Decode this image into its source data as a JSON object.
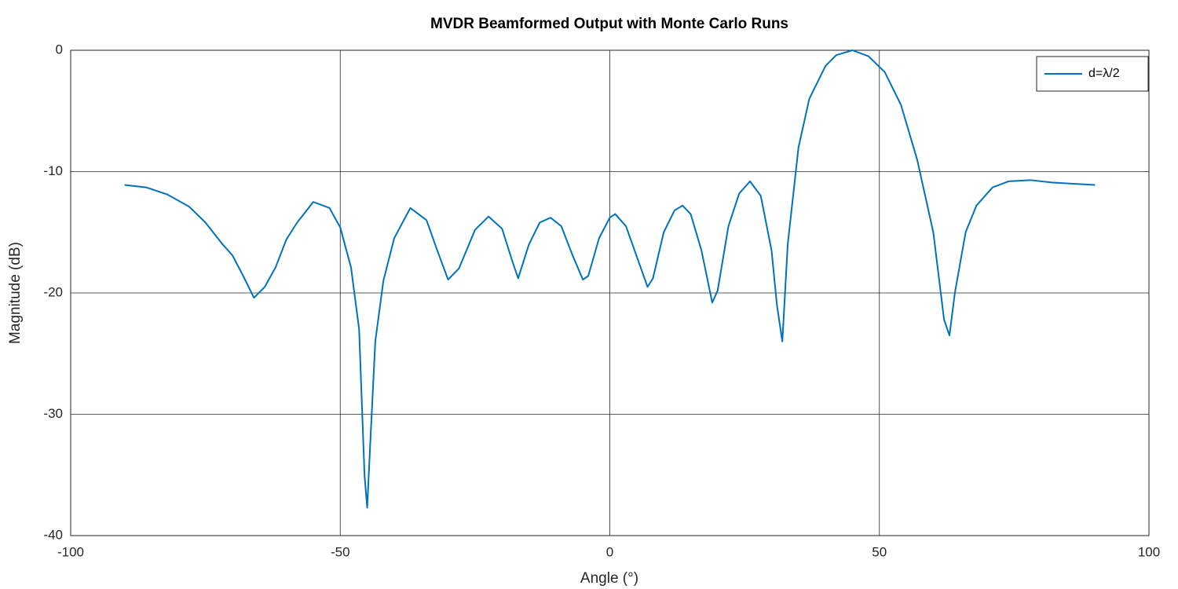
{
  "chart_data": {
    "type": "line",
    "title": "MVDR Beamformed Output with Monte Carlo Runs",
    "x_label": "Angle (°)",
    "y_label": "Magnitude (dB)",
    "x": [
      -90,
      -86,
      -82,
      -78,
      -75,
      -72,
      -70,
      -68,
      -66,
      -64,
      -62,
      -60,
      -58,
      -55,
      -52,
      -50,
      -48,
      -46.5,
      -45.5,
      -45,
      -44.5,
      -43.5,
      -42,
      -40,
      -37,
      -34,
      -32,
      -30,
      -28,
      -25,
      -22.5,
      -20,
      -18,
      -17,
      -15,
      -13,
      -11,
      -9,
      -7,
      -5,
      -4,
      -2,
      0,
      1,
      3,
      5,
      7,
      8,
      10,
      12,
      13.5,
      15,
      17,
      19,
      20,
      22,
      24,
      26,
      28,
      30,
      31,
      32,
      33,
      35,
      37,
      40,
      42,
      45,
      48,
      51,
      54,
      57,
      60,
      62,
      63,
      64,
      66,
      68,
      71,
      74,
      78,
      82,
      86,
      90
    ],
    "series": [
      {
        "name": "d=λ/2",
        "color": "#0072bd",
        "values": [
          -11.1,
          -11.3,
          -11.9,
          -12.9,
          -14.2,
          -15.9,
          -16.9,
          -18.6,
          -20.4,
          -19.5,
          -17.9,
          -15.6,
          -14.2,
          -12.5,
          -13,
          -14.6,
          -17.9,
          -23,
          -35,
          -37.7,
          -33,
          -24,
          -19,
          -15.5,
          -13,
          -14,
          -16.5,
          -18.9,
          -18,
          -14.8,
          -13.7,
          -14.7,
          -17.5,
          -18.8,
          -16,
          -14.2,
          -13.8,
          -14.5,
          -16.8,
          -18.9,
          -18.6,
          -15.5,
          -13.8,
          -13.5,
          -14.5,
          -17,
          -19.5,
          -18.8,
          -15,
          -13.2,
          -12.8,
          -13.5,
          -16.5,
          -20.8,
          -19.8,
          -14.5,
          -11.8,
          -10.8,
          -12,
          -16.5,
          -21,
          -24,
          -16,
          -8,
          -4,
          -1.3,
          -0.4,
          0,
          -0.5,
          -1.8,
          -4.5,
          -9,
          -15,
          -22.2,
          -23.5,
          -20,
          -15,
          -12.8,
          -11.3,
          -10.8,
          -10.7,
          -10.9,
          -11,
          -11.1
        ]
      }
    ],
    "xlim": [
      -100,
      100
    ],
    "xticks": [
      -100,
      -50,
      0,
      50,
      100
    ],
    "ylim": [
      -40,
      0
    ],
    "yticks": [
      -40,
      -30,
      -20,
      -10,
      0
    ],
    "grid": true,
    "legend": "upper right"
  }
}
